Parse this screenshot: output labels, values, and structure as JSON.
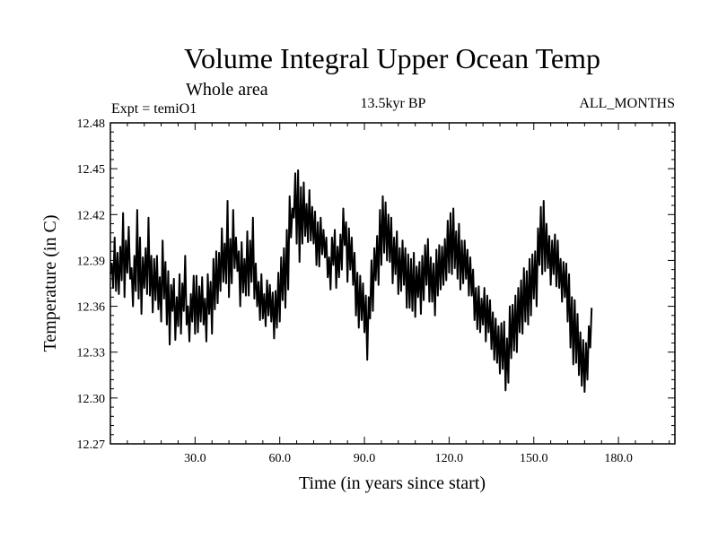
{
  "chart_data": {
    "type": "line",
    "title": "Volume Integral Upper Ocean Temp",
    "subtitle": "Whole area",
    "experiment_label": "Expt = temiO1",
    "period_label": "13.5kyr BP",
    "months_label": "ALL_MONTHS",
    "xlabel": "Time (in years since start)",
    "ylabel": "Temperature (in C)",
    "xlim": [
      0,
      200
    ],
    "ylim": [
      12.27,
      12.48
    ],
    "x_ticks": [
      30,
      60,
      90,
      120,
      150,
      180
    ],
    "x_tick_labels": [
      "30.0",
      "60.0",
      "90.0",
      "120.0",
      "150.0",
      "180.0"
    ],
    "y_ticks": [
      12.27,
      12.3,
      12.33,
      12.36,
      12.39,
      12.42,
      12.45,
      12.48
    ],
    "y_tick_labels": [
      "12.27",
      "12.30",
      "12.33",
      "12.36",
      "12.39",
      "12.42",
      "12.45",
      "12.48"
    ],
    "series": [
      {
        "name": "temiO1",
        "color": "#000000",
        "x_start": 0,
        "x_step": 0.5,
        "values": [
          12.381,
          12.388,
          12.372,
          12.405,
          12.37,
          12.395,
          12.368,
          12.399,
          12.377,
          12.421,
          12.366,
          12.403,
          12.382,
          12.412,
          12.378,
          12.385,
          12.36,
          12.393,
          12.37,
          12.423,
          12.365,
          12.405,
          12.355,
          12.392,
          12.372,
          12.398,
          12.368,
          12.418,
          12.367,
          12.393,
          12.356,
          12.391,
          12.364,
          12.393,
          12.358,
          12.379,
          12.35,
          12.403,
          12.365,
          12.389,
          12.348,
          12.383,
          12.335,
          12.374,
          12.357,
          12.378,
          12.338,
          12.366,
          12.347,
          12.381,
          12.342,
          12.375,
          12.357,
          12.393,
          12.348,
          12.36,
          12.337,
          12.368,
          12.35,
          12.38,
          12.342,
          12.38,
          12.343,
          12.373,
          12.35,
          12.379,
          12.348,
          12.365,
          12.337,
          12.381,
          12.355,
          12.376,
          12.342,
          12.391,
          12.358,
          12.396,
          12.362,
          12.395,
          12.37,
          12.411,
          12.376,
          12.401,
          12.375,
          12.429,
          12.366,
          12.404,
          12.375,
          12.423,
          12.385,
          12.405,
          12.383,
          12.396,
          12.36,
          12.402,
          12.369,
          12.391,
          12.367,
          12.409,
          12.367,
          12.403,
          12.376,
          12.418,
          12.365,
          12.388,
          12.36,
          12.376,
          12.351,
          12.381,
          12.352,
          12.368,
          12.347,
          12.377,
          12.354,
          12.374,
          12.35,
          12.369,
          12.339,
          12.37,
          12.346,
          12.382,
          12.35,
          12.392,
          12.364,
          12.398,
          12.359,
          12.41,
          12.371,
          12.432,
          12.405,
          12.424,
          12.418,
          12.447,
          12.401,
          12.449,
          12.389,
          12.438,
          12.401,
          12.441,
          12.406,
          12.427,
          12.402,
          12.436,
          12.403,
          12.425,
          12.401,
          12.422,
          12.387,
          12.415,
          12.386,
          12.418,
          12.394,
          12.41,
          12.392,
          12.405,
          12.379,
          12.392,
          12.371,
          12.405,
          12.387,
          12.41,
          12.372,
          12.399,
          12.379,
          12.407,
          12.384,
          12.424,
          12.4,
          12.415,
          12.376,
          12.411,
          12.384,
          12.405,
          12.374,
          12.395,
          12.354,
          12.382,
          12.346,
          12.38,
          12.351,
          12.375,
          12.343,
          12.367,
          12.325,
          12.366,
          12.352,
          12.39,
          12.357,
          12.398,
          12.377,
          12.406,
          12.374,
          12.423,
          12.387,
          12.432,
          12.395,
          12.428,
          12.39,
          12.42,
          12.389,
          12.418,
          12.375,
          12.405,
          12.381,
          12.409,
          12.368,
          12.398,
          12.37,
          12.403,
          12.374,
          12.398,
          12.359,
          12.394,
          12.359,
          12.391,
          12.357,
          12.395,
          12.353,
          12.386,
          12.366,
          12.389,
          12.355,
          12.393,
          12.364,
          12.4,
          12.374,
          12.404,
          12.363,
          12.392,
          12.363,
          12.388,
          12.354,
          12.397,
          12.367,
          12.4,
          12.371,
          12.399,
          12.374,
          12.404,
          12.377,
          12.416,
          12.382,
          12.421,
          12.381,
          12.424,
          12.385,
          12.409,
          12.378,
          12.414,
          12.371,
          12.403,
          12.375,
          12.403,
          12.378,
          12.397,
          12.367,
          12.392,
          12.367,
          12.384,
          12.351,
          12.372,
          12.345,
          12.373,
          12.343,
          12.365,
          12.348,
          12.372,
          12.337,
          12.367,
          12.343,
          12.364,
          12.332,
          12.356,
          12.325,
          12.352,
          12.323,
          12.347,
          12.316,
          12.349,
          12.319,
          12.35,
          12.305,
          12.339,
          12.31,
          12.36,
          12.326,
          12.361,
          12.331,
          12.367,
          12.33,
          12.372,
          12.343,
          12.377,
          12.342,
          12.385,
          12.35,
          12.383,
          12.348,
          12.391,
          12.354,
          12.394,
          12.365,
          12.396,
          12.36,
          12.411,
          12.387,
          12.425,
          12.381,
          12.429,
          12.383,
          12.414,
          12.385,
          12.406,
          12.374,
          12.403,
          12.381,
          12.407,
          12.373,
          12.403,
          12.372,
          12.391,
          12.363,
          12.389,
          12.366,
          12.388,
          12.35,
          12.381,
          12.333,
          12.366,
          12.322,
          12.364,
          12.323,
          12.355,
          12.315,
          12.343,
          12.308,
          12.338,
          12.304,
          12.336,
          12.312,
          12.347,
          12.333,
          12.359
        ]
      }
    ]
  }
}
